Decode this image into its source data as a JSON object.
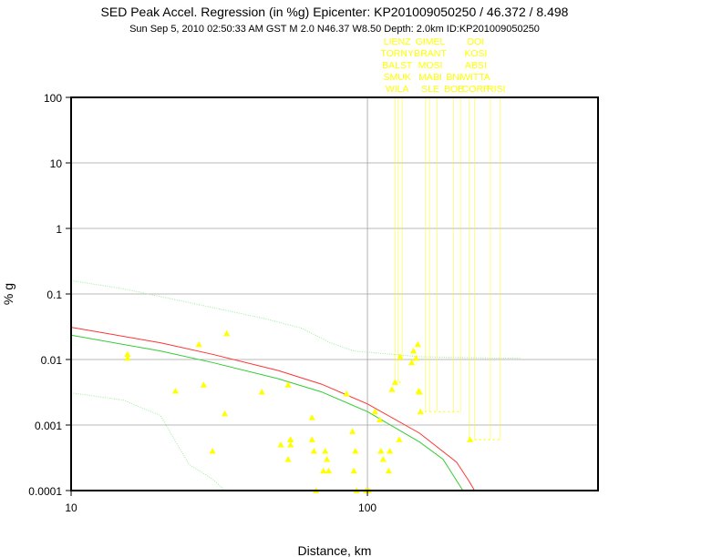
{
  "chart_data": {
    "type": "scatter",
    "title": "SED Peak Accel. Regression (in %g) Epicenter: KP201009050250 / 46.372 / 8.498",
    "subtitle": "Sun Sep  5, 2010 02:50:33 AM GST   M 2.0   N46.37 W8.50   Depth: 2.0km   ID:KP201009050250",
    "xlabel": "Distance, km",
    "ylabel": "% g",
    "x_scale": "log",
    "y_scale": "log",
    "xlim": [
      10,
      600
    ],
    "ylim": [
      0.0001,
      100
    ],
    "x_ticks": [
      {
        "value": 10,
        "label": "10"
      },
      {
        "value": 100,
        "label": "100"
      }
    ],
    "y_ticks": [
      {
        "value": 100,
        "label": "100"
      },
      {
        "value": 10,
        "label": "10"
      },
      {
        "value": 1,
        "label": "1"
      },
      {
        "value": 0.1,
        "label": "0.1"
      },
      {
        "value": 0.01,
        "label": "0.01"
      },
      {
        "value": 0.001,
        "label": "0.001"
      },
      {
        "value": 0.0001,
        "label": "0.0001"
      }
    ],
    "grid": true,
    "colors": {
      "points": "#ffff00",
      "regression_red": "#ff3333",
      "regression_green": "#33cc33",
      "bounds": "#99ee99",
      "grid": "#a0a0a0",
      "station_labels": "#ffff00"
    },
    "points": [
      [
        15.5,
        0.012
      ],
      [
        15.5,
        0.0105
      ],
      [
        22.5,
        0.0033
      ],
      [
        27,
        0.017
      ],
      [
        28,
        0.0041
      ],
      [
        30,
        0.0004
      ],
      [
        33,
        0.0015
      ],
      [
        33.5,
        0.025
      ],
      [
        44,
        0.0032
      ],
      [
        51,
        0.0005
      ],
      [
        54,
        0.0003
      ],
      [
        54,
        0.0041
      ],
      [
        55,
        0.0006
      ],
      [
        55,
        0.0006
      ],
      [
        55,
        0.0005
      ],
      [
        65,
        0.0013
      ],
      [
        65,
        0.0006
      ],
      [
        66,
        0.0004
      ],
      [
        67,
        0.0001
      ],
      [
        71,
        0.0002
      ],
      [
        72,
        0.0004
      ],
      [
        73,
        0.0003
      ],
      [
        74,
        0.0002
      ],
      [
        85,
        0.003
      ],
      [
        89,
        0.0008
      ],
      [
        90,
        0.0002
      ],
      [
        91,
        0.0004
      ],
      [
        92,
        0.0001
      ],
      [
        99,
        0.0001
      ],
      [
        101,
        0.0001
      ],
      [
        106,
        0.0016
      ],
      [
        110,
        0.0012
      ],
      [
        111,
        0.0004
      ],
      [
        113,
        0.0003
      ],
      [
        118,
        0.0002
      ],
      [
        119,
        0.0004
      ],
      [
        121,
        0.0035
      ],
      [
        124,
        0.0045
      ],
      [
        128,
        0.0006
      ],
      [
        129,
        0.011
      ],
      [
        141,
        0.009
      ],
      [
        143,
        0.0135
      ],
      [
        146,
        0.0105
      ],
      [
        148,
        0.017
      ],
      [
        149,
        0.0033
      ],
      [
        150,
        0.0032
      ],
      [
        151,
        0.0016
      ],
      [
        222,
        0.0006
      ]
    ],
    "regression_red": [
      [
        10,
        0.031
      ],
      [
        20,
        0.018
      ],
      [
        30,
        0.012
      ],
      [
        50,
        0.0068
      ],
      [
        70,
        0.0042
      ],
      [
        100,
        0.0021
      ],
      [
        150,
        0.00075
      ],
      [
        200,
        0.00027
      ],
      [
        220,
        0.00014
      ],
      [
        230,
        0.0001
      ]
    ],
    "regression_green": [
      [
        10,
        0.0235
      ],
      [
        20,
        0.0135
      ],
      [
        30,
        0.009
      ],
      [
        50,
        0.0051
      ],
      [
        70,
        0.0032
      ],
      [
        100,
        0.0016
      ],
      [
        150,
        0.00055
      ],
      [
        180,
        0.0003
      ],
      [
        210,
        0.0001
      ]
    ],
    "upper_bound": [
      [
        10,
        0.16
      ],
      [
        15,
        0.12
      ],
      [
        25,
        0.074
      ],
      [
        45,
        0.042
      ],
      [
        60,
        0.03
      ],
      [
        75,
        0.018
      ],
      [
        90,
        0.0135
      ],
      [
        150,
        0.011
      ],
      [
        270,
        0.0105
      ],
      [
        330,
        0.0105
      ]
    ],
    "lower_bound": [
      [
        10,
        0.0031
      ],
      [
        15,
        0.0024
      ],
      [
        20,
        0.0014
      ],
      [
        25,
        0.00025
      ],
      [
        30,
        0.00015
      ],
      [
        33,
        0.0001
      ]
    ],
    "stations": [
      {
        "labels": [
          "LIENZ",
          "TORNY",
          "BALST",
          "SMUK",
          "WILA"
        ],
        "x": 126
      },
      {
        "labels": [
          "GIMEL",
          "BRANT",
          "MOSI",
          "MABI",
          "SLE"
        ],
        "x": 163
      },
      {
        "labels": [
          "BNI",
          "BOB"
        ],
        "x": 196
      },
      {
        "labels": [
          "DOI",
          "KOSI",
          "ABSI",
          "WITTA",
          "CORP"
        ],
        "x": 232
      },
      {
        "labels": [
          "RISI"
        ],
        "x": 272
      }
    ],
    "station_leaders": [
      {
        "x": 124,
        "y": 0.0045
      },
      {
        "x": 127,
        "y": 0.0045
      },
      {
        "x": 131,
        "y": 0.011
      },
      {
        "x": 157,
        "y": 0.0016
      },
      {
        "x": 162,
        "y": 0.0016
      },
      {
        "x": 172,
        "y": 0.0016
      },
      {
        "x": 195,
        "y": 0.0016
      },
      {
        "x": 207,
        "y": 0.0016
      },
      {
        "x": 220,
        "y": 0.0006
      },
      {
        "x": 230,
        "y": 0.0006
      },
      {
        "x": 260,
        "y": 0.0006
      },
      {
        "x": 280,
        "y": 0.0006
      }
    ]
  }
}
